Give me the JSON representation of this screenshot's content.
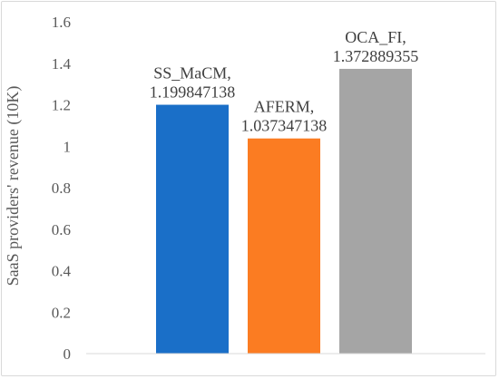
{
  "chart_data": {
    "type": "bar",
    "title": "",
    "xlabel": "",
    "ylabel": "SaaS providers' revenue (10K)",
    "ylim": [
      0,
      1.6
    ],
    "yticks": [
      "0",
      "0.2",
      "0.4",
      "0.6",
      "0.8",
      "1",
      "1.2",
      "1.4",
      "1.6"
    ],
    "grid": false,
    "legend": "none",
    "categories": [
      "SS_MaCM",
      "AFERM",
      "OCA_FI"
    ],
    "values": [
      1.199847138,
      1.037347138,
      1.372889355
    ],
    "data_labels": [
      {
        "name": "SS_MaCM,",
        "value": "1.199847138"
      },
      {
        "name": "AFERM,",
        "value": "1.037347138"
      },
      {
        "name": "OCA_FI,",
        "value": "1.372889355"
      }
    ],
    "colors": [
      "#1a6fc8",
      "#fb7c22",
      "#a5a5a5"
    ]
  }
}
